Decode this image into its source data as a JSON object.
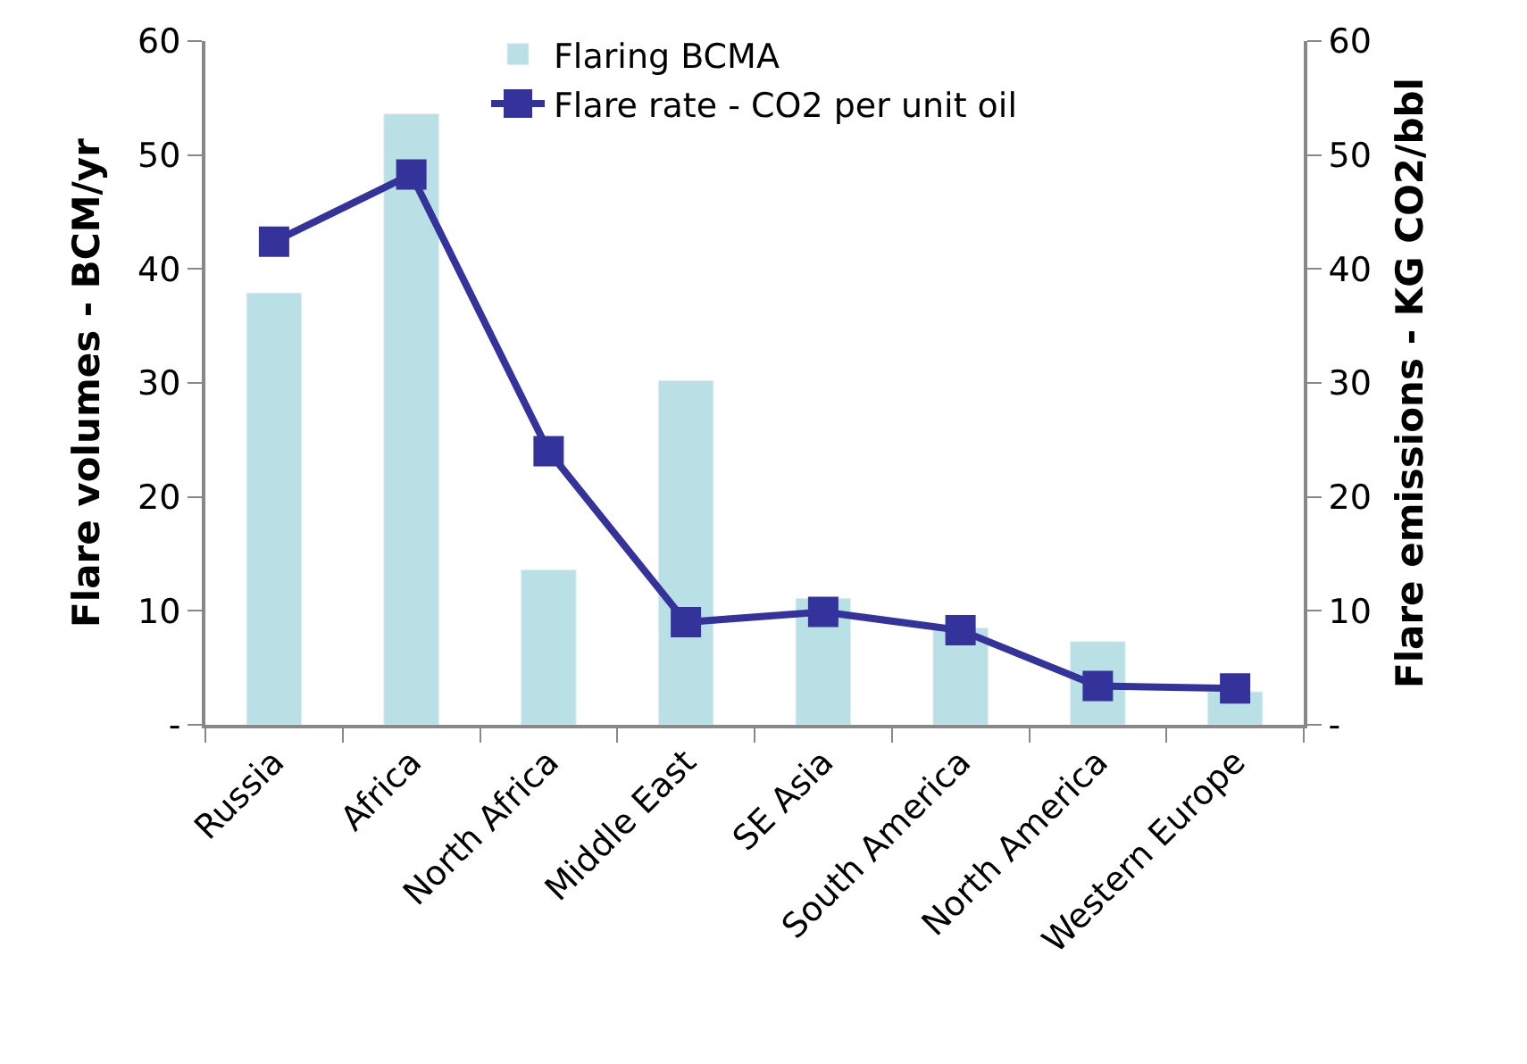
{
  "chart_data": {
    "type": "bar",
    "ylabel": "Flare volumes - BCM/yr",
    "y2label": "Flare emissions - KG CO2/bbl",
    "categories": [
      "Russia",
      "Africa",
      "North Africa",
      "Middle East",
      "SE Asia",
      "South America",
      "North America",
      "Western Europe"
    ],
    "series": [
      {
        "name": "Flaring BCMA",
        "color": "#b9e0e4",
        "values": [
          37.9,
          53.6,
          13.6,
          30.2,
          11.1,
          8.5,
          7.3,
          2.9
        ]
      },
      {
        "name": "Flare rate - CO2 per unit oil",
        "type": "line",
        "axis": "y2",
        "color": "#33339b",
        "marker": "square",
        "values": [
          42.4,
          48.3,
          24.0,
          9.0,
          9.9,
          8.3,
          3.4,
          3.2
        ]
      }
    ],
    "ylim": [
      0,
      60
    ],
    "yticks": [
      {
        "value": 0,
        "label": "-"
      },
      10,
      20,
      30,
      40,
      50,
      60
    ],
    "y2lim": [
      0,
      60
    ],
    "y2ticks": [
      {
        "value": 0,
        "label": "-"
      },
      10,
      20,
      30,
      40,
      50,
      60
    ],
    "legend": "top"
  }
}
